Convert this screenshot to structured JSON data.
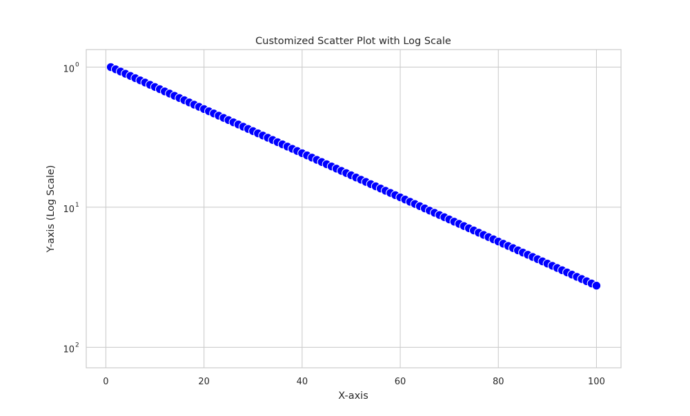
{
  "chart_data": {
    "type": "scatter",
    "title": "Customized Scatter Plot with Log Scale",
    "xlabel": "X-axis",
    "ylabel": "Y-axis (Log Scale)",
    "x_scale": "linear",
    "y_scale": "log",
    "y_axis_inverted": true,
    "xlim": [
      -4,
      105
    ],
    "ylim": [
      0.75,
      140
    ],
    "x_ticks": [
      {
        "value": 0,
        "label": "0"
      },
      {
        "value": 20,
        "label": "20"
      },
      {
        "value": 40,
        "label": "40"
      },
      {
        "value": 60,
        "label": "60"
      },
      {
        "value": 80,
        "label": "80"
      },
      {
        "value": 100,
        "label": "100"
      }
    ],
    "y_ticks": [
      {
        "value": 1,
        "base": "10",
        "exponent": "0"
      },
      {
        "value": 10,
        "base": "10",
        "exponent": "1"
      },
      {
        "value": 100,
        "base": "10",
        "exponent": "2"
      }
    ],
    "grid": true,
    "legend": "none",
    "colors": {
      "marker": "#0000ff",
      "marker_edge": "#ffffff",
      "grid": "#cccccc",
      "spine": "#cccccc",
      "text": "#262626",
      "background": "#ffffff"
    },
    "series": [
      {
        "x_start": 1,
        "x_end": 100,
        "x_step": 1,
        "y_rule": "y = 10^((x - 1) / 63.5)",
        "y_start": 1.0,
        "y_end": 36.3
      }
    ]
  }
}
